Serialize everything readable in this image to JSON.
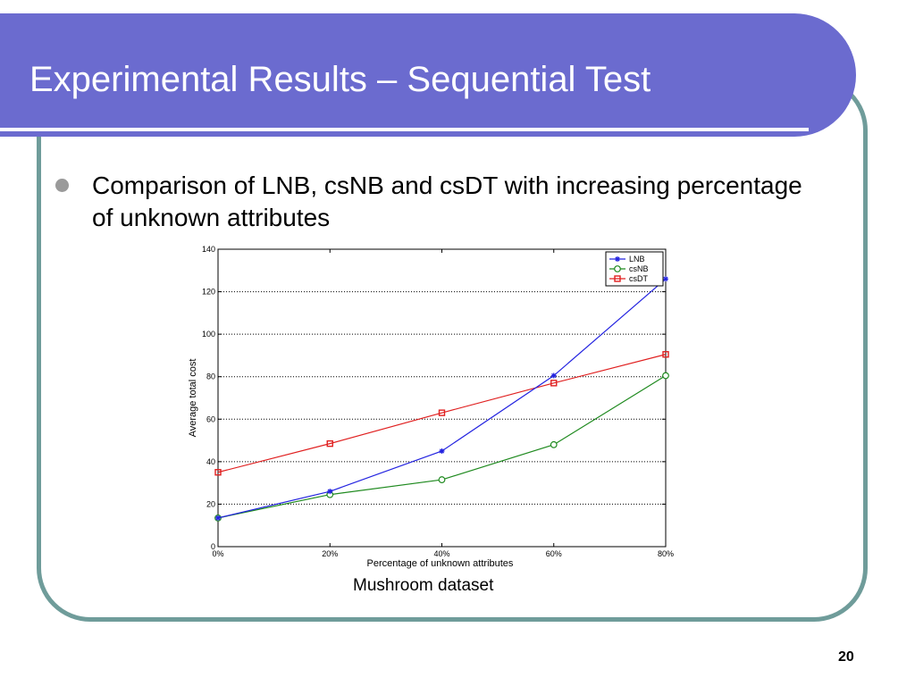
{
  "slide": {
    "title": "Experimental Results – Sequential Test",
    "bullet": "Comparison of LNB, csNB and csDT with increasing percentage of unknown attributes",
    "caption": "Mushroom dataset",
    "page_number": "20"
  },
  "colors": {
    "title_bg": "#6b6bcf",
    "frame": "#6f9c9a",
    "LNB": "#2323e0",
    "csNB": "#1f8a1f",
    "csDT": "#e02020"
  },
  "chart_data": {
    "type": "line",
    "title": "",
    "xlabel": "Percentage of unknown attributes",
    "ylabel": "Average total cost",
    "categories": [
      "0%",
      "20%",
      "40%",
      "60%",
      "80%"
    ],
    "x": [
      0,
      20,
      40,
      60,
      80
    ],
    "ylim": [
      0,
      140
    ],
    "yticks": [
      0,
      20,
      40,
      60,
      80,
      100,
      120,
      140
    ],
    "grid": true,
    "legend_position": "top-right",
    "series": [
      {
        "name": "LNB",
        "marker": "star",
        "values": [
          13.5,
          26,
          45,
          80.5,
          126
        ]
      },
      {
        "name": "csNB",
        "marker": "circle",
        "values": [
          13.5,
          24.5,
          31.5,
          48,
          80.5
        ]
      },
      {
        "name": "csDT",
        "marker": "square",
        "values": [
          35,
          48.5,
          63,
          77,
          90.5
        ]
      }
    ]
  }
}
